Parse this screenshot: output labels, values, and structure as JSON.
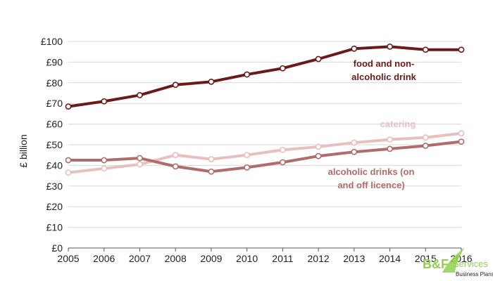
{
  "chart_data": {
    "type": "line",
    "ylabel": "£ billion",
    "xlabel": "",
    "ylim": [
      0,
      100
    ],
    "y_ticks": [
      "£0",
      "£10",
      "£20",
      "£30",
      "£40",
      "£50",
      "£60",
      "£70",
      "£80",
      "£90",
      "£100"
    ],
    "y_tick_values": [
      0,
      10,
      20,
      30,
      40,
      50,
      60,
      70,
      80,
      90,
      100
    ],
    "x": [
      "2005",
      "2006",
      "2007",
      "2008",
      "2009",
      "2010",
      "2011",
      "2012",
      "2013",
      "2014",
      "2015",
      "2016"
    ],
    "grid": "horizontal",
    "series": [
      {
        "name": "food and non-alcoholic drink",
        "label_lines": [
          "food and non-",
          "alcoholic drink"
        ],
        "color": "#6b1a1a",
        "values": [
          68.5,
          71,
          74,
          79,
          80.5,
          84,
          87,
          91.5,
          96.5,
          97.5,
          96,
          96
        ]
      },
      {
        "name": "catering",
        "label_lines": [
          "catering"
        ],
        "color": "#e8bfbf",
        "values": [
          36.5,
          38.5,
          40.5,
          45,
          43,
          45,
          47.5,
          49,
          51,
          52.5,
          53.5,
          55.5
        ]
      },
      {
        "name": "alcoholic drinks (on and off licence)",
        "label_lines": [
          "alcoholic drinks (on",
          "and off licence)"
        ],
        "color": "#b06b6b",
        "values": [
          42.5,
          42.5,
          43.5,
          39.5,
          37,
          39,
          41.5,
          44.5,
          46.5,
          48,
          49.5,
          51.5
        ]
      }
    ]
  },
  "logo": {
    "text": "B&F",
    "services": "Services",
    "tagline": "Business Plans",
    "accent_color": "#8fd14f"
  }
}
